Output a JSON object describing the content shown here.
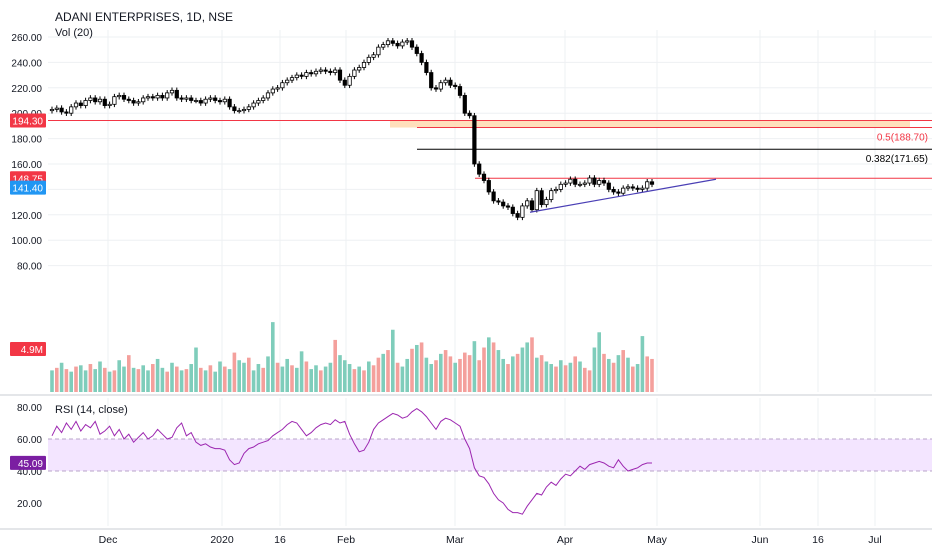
{
  "header": {
    "title": "ADANI ENTERPRISES, 1D, NSE",
    "volume_indicator": "Vol (20)",
    "rsi_indicator": "RSI (14, close)"
  },
  "colors": {
    "up_volume": "#7fcdbb",
    "down_volume": "#f4a09c",
    "candle_down": "#000000",
    "candle_up": "#ffffff",
    "rsi_line": "#9c27b0",
    "rsi_band": "#f3e5ff",
    "resistance": "#f23645",
    "trendline": "#4a3fb5",
    "fib_zone": "#ffd9b0",
    "grid": "#eef0f3"
  },
  "chart_data": {
    "type": "candlestick",
    "price_axis": {
      "ticks": [
        260,
        240,
        220,
        200,
        180,
        160,
        140,
        120,
        100,
        80
      ],
      "tick_labels": [
        "260.00",
        "240.00",
        "220.00",
        "200.00",
        "180.00",
        "160.00",
        "140.00",
        "120.00",
        "100.00",
        "80.00"
      ]
    },
    "x_axis": {
      "tick_labels": [
        "Dec",
        "2020",
        "16",
        "Feb",
        "Mar",
        "Apr",
        "May",
        "Jun",
        "16",
        "Jul"
      ]
    },
    "price_labels": [
      {
        "value": "194.30",
        "color": "#f23645"
      },
      {
        "value": "148.75",
        "color": "#f23645"
      },
      {
        "value": "141.40",
        "color": "#2196f3"
      },
      {
        "value": "4.9M",
        "color": "#f23645"
      }
    ],
    "fib_levels": [
      {
        "label": "0.5(188.70)",
        "value": 188.7,
        "color": "#f23645"
      },
      {
        "label": "0.382(171.65)",
        "value": 171.65,
        "color": "#000000"
      }
    ],
    "horizontal_lines": [
      194.3,
      148.75
    ],
    "trendline": {
      "from": [
        122,
        118
      ],
      "to": [
        218,
        148
      ]
    },
    "closes": [
      203,
      204,
      201,
      200,
      205,
      208,
      206,
      210,
      212,
      209,
      211,
      206,
      207,
      213,
      214,
      211,
      210,
      208,
      209,
      212,
      213,
      212,
      214,
      212,
      216,
      218,
      212,
      211,
      212,
      210,
      210,
      208,
      211,
      212,
      210,
      209,
      211,
      205,
      202,
      202,
      203,
      205,
      208,
      210,
      212,
      216,
      219,
      220,
      224,
      226,
      228,
      230,
      229,
      232,
      231,
      233,
      234,
      233,
      232,
      234,
      226,
      222,
      229,
      234,
      236,
      240,
      244,
      246,
      252,
      254,
      257,
      255,
      253,
      256,
      257,
      252,
      247,
      240,
      232,
      220,
      219,
      224,
      226,
      222,
      221,
      214,
      200,
      198,
      160,
      152,
      147,
      138,
      131,
      130,
      127,
      126,
      121,
      118,
      127,
      131,
      124,
      139,
      128,
      132,
      139,
      140,
      144,
      145,
      148,
      144,
      144,
      145,
      149,
      144,
      147,
      145,
      140,
      138,
      137,
      141,
      142,
      141,
      140,
      141,
      146,
      144
    ],
    "volume": {
      "axis_label": "4.9M",
      "bars": [
        {
          "v": 86,
          "up": true
        },
        {
          "v": 88,
          "up": false
        },
        {
          "v": 92,
          "up": true
        },
        {
          "v": 87,
          "up": false
        },
        {
          "v": 85,
          "up": true
        },
        {
          "v": 89,
          "up": false
        },
        {
          "v": 90,
          "up": true
        },
        {
          "v": 86,
          "up": true
        },
        {
          "v": 91,
          "up": false
        },
        {
          "v": 87,
          "up": true
        },
        {
          "v": 93,
          "up": true
        },
        {
          "v": 88,
          "up": false
        },
        {
          "v": 85,
          "up": true
        },
        {
          "v": 86,
          "up": false
        },
        {
          "v": 94,
          "up": true
        },
        {
          "v": 89,
          "up": true
        },
        {
          "v": 98,
          "up": false
        },
        {
          "v": 88,
          "up": true
        },
        {
          "v": 87,
          "up": false
        },
        {
          "v": 90,
          "up": true
        },
        {
          "v": 86,
          "up": true
        },
        {
          "v": 91,
          "up": false
        },
        {
          "v": 95,
          "up": true
        },
        {
          "v": 88,
          "up": true
        },
        {
          "v": 85,
          "up": false
        },
        {
          "v": 92,
          "up": true
        },
        {
          "v": 89,
          "up": false
        },
        {
          "v": 86,
          "up": true
        },
        {
          "v": 87,
          "up": false
        },
        {
          "v": 91,
          "up": true
        },
        {
          "v": 104,
          "up": true
        },
        {
          "v": 88,
          "up": false
        },
        {
          "v": 86,
          "up": true
        },
        {
          "v": 90,
          "up": false
        },
        {
          "v": 85,
          "up": true
        },
        {
          "v": 93,
          "up": true
        },
        {
          "v": 89,
          "up": false
        },
        {
          "v": 87,
          "up": true
        },
        {
          "v": 100,
          "up": false
        },
        {
          "v": 94,
          "up": true
        },
        {
          "v": 92,
          "up": true
        },
        {
          "v": 96,
          "up": false
        },
        {
          "v": 86,
          "up": true
        },
        {
          "v": 91,
          "up": true
        },
        {
          "v": 88,
          "up": false
        },
        {
          "v": 97,
          "up": true
        },
        {
          "v": 124,
          "up": true
        },
        {
          "v": 92,
          "up": false
        },
        {
          "v": 89,
          "up": true
        },
        {
          "v": 95,
          "up": true
        },
        {
          "v": 90,
          "up": false
        },
        {
          "v": 88,
          "up": true
        },
        {
          "v": 101,
          "up": true
        },
        {
          "v": 93,
          "up": false
        },
        {
          "v": 87,
          "up": true
        },
        {
          "v": 90,
          "up": true
        },
        {
          "v": 86,
          "up": false
        },
        {
          "v": 89,
          "up": true
        },
        {
          "v": 92,
          "up": true
        },
        {
          "v": 110,
          "up": false
        },
        {
          "v": 98,
          "up": true
        },
        {
          "v": 94,
          "up": true
        },
        {
          "v": 91,
          "up": true
        },
        {
          "v": 87,
          "up": false
        },
        {
          "v": 89,
          "up": true
        },
        {
          "v": 86,
          "up": false
        },
        {
          "v": 93,
          "up": true
        },
        {
          "v": 90,
          "up": false
        },
        {
          "v": 96,
          "up": false
        },
        {
          "v": 99,
          "up": true
        },
        {
          "v": 102,
          "up": false
        },
        {
          "v": 118,
          "up": true
        },
        {
          "v": 92,
          "up": false
        },
        {
          "v": 89,
          "up": true
        },
        {
          "v": 95,
          "up": true
        },
        {
          "v": 103,
          "up": false
        },
        {
          "v": 106,
          "up": true
        },
        {
          "v": 108,
          "up": false
        },
        {
          "v": 96,
          "up": true
        },
        {
          "v": 91,
          "up": true
        },
        {
          "v": 94,
          "up": false
        },
        {
          "v": 99,
          "up": true
        },
        {
          "v": 102,
          "up": false
        },
        {
          "v": 97,
          "up": false
        },
        {
          "v": 92,
          "up": true
        },
        {
          "v": 95,
          "up": false
        },
        {
          "v": 100,
          "up": false
        },
        {
          "v": 98,
          "up": false
        },
        {
          "v": 109,
          "up": true
        },
        {
          "v": 94,
          "up": false
        },
        {
          "v": 104,
          "up": false
        },
        {
          "v": 112,
          "up": true
        },
        {
          "v": 108,
          "up": false
        },
        {
          "v": 102,
          "up": true
        },
        {
          "v": 95,
          "up": true
        },
        {
          "v": 91,
          "up": false
        },
        {
          "v": 97,
          "up": true
        },
        {
          "v": 99,
          "up": false
        },
        {
          "v": 104,
          "up": true
        },
        {
          "v": 108,
          "up": true
        },
        {
          "v": 112,
          "up": false
        },
        {
          "v": 96,
          "up": true
        },
        {
          "v": 98,
          "up": false
        },
        {
          "v": 93,
          "up": true
        },
        {
          "v": 91,
          "up": true
        },
        {
          "v": 89,
          "up": false
        },
        {
          "v": 94,
          "up": true
        },
        {
          "v": 90,
          "up": false
        },
        {
          "v": 92,
          "up": true
        },
        {
          "v": 97,
          "up": false
        },
        {
          "v": 93,
          "up": true
        },
        {
          "v": 88,
          "up": false
        },
        {
          "v": 86,
          "up": false
        },
        {
          "v": 104,
          "up": true
        },
        {
          "v": 116,
          "up": true
        },
        {
          "v": 99,
          "up": false
        },
        {
          "v": 95,
          "up": true
        },
        {
          "v": 92,
          "up": false
        },
        {
          "v": 98,
          "up": true
        },
        {
          "v": 102,
          "up": false
        },
        {
          "v": 96,
          "up": true
        },
        {
          "v": 89,
          "up": false
        },
        {
          "v": 91,
          "up": true
        },
        {
          "v": 113,
          "up": true
        },
        {
          "v": 97,
          "up": false
        },
        {
          "v": 95,
          "up": false
        }
      ]
    },
    "rsi": {
      "ticks": [
        80,
        60,
        40,
        20
      ],
      "tick_labels": [
        "80.00",
        "60.00",
        "40.00",
        "20.00"
      ],
      "band": [
        40,
        60
      ],
      "current": "45.09",
      "values": [
        62,
        68,
        64,
        70,
        66,
        71,
        65,
        69,
        67,
        71,
        63,
        65,
        68,
        62,
        66,
        60,
        63,
        58,
        61,
        64,
        60,
        62,
        66,
        63,
        60,
        61,
        67,
        70,
        62,
        64,
        58,
        56,
        57,
        55,
        54,
        54,
        53,
        47,
        44,
        45,
        51,
        54,
        55,
        57,
        58,
        59,
        62,
        64,
        66,
        69,
        71,
        70,
        66,
        62,
        64,
        67,
        69,
        70,
        69,
        72,
        70,
        71,
        63,
        57,
        52,
        53,
        58,
        66,
        70,
        72,
        74,
        76,
        75,
        73,
        74,
        77,
        79,
        77,
        74,
        70,
        66,
        71,
        73,
        72,
        70,
        68,
        60,
        54,
        42,
        37,
        36,
        32,
        26,
        22,
        20,
        16,
        14,
        14,
        13,
        18,
        22,
        26,
        25,
        30,
        33,
        31,
        35,
        38,
        37,
        40,
        43,
        41,
        44,
        45,
        46,
        45,
        43,
        42,
        47,
        43,
        40,
        41,
        42,
        44,
        45,
        45
      ]
    }
  }
}
